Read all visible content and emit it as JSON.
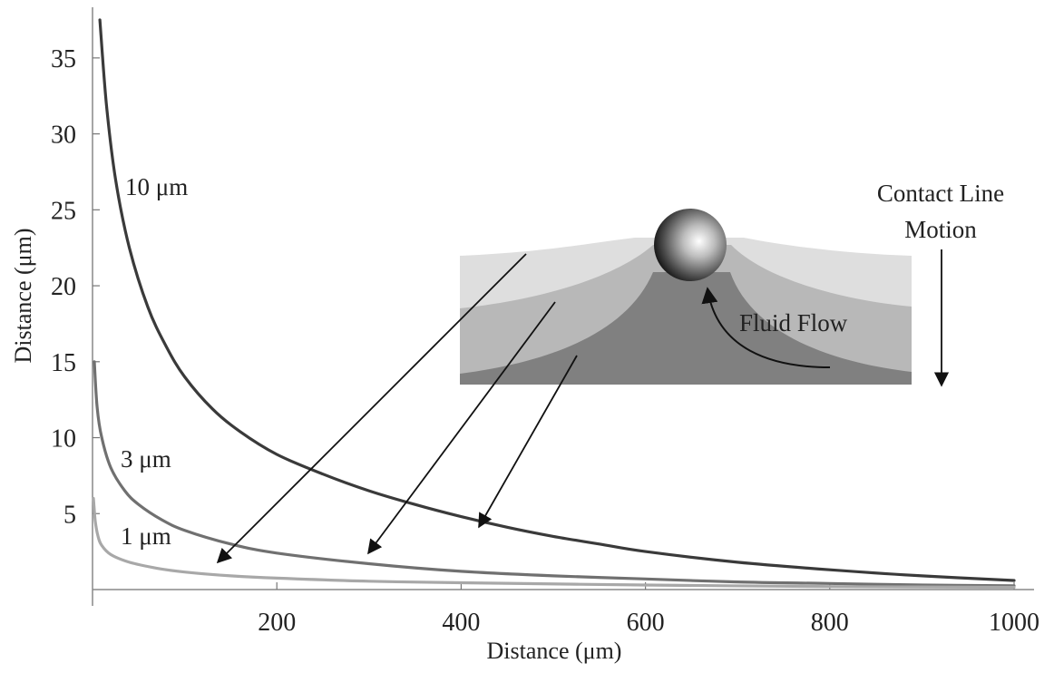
{
  "chart_data": {
    "type": "line",
    "title": "",
    "xlabel": "Distance (μm)",
    "ylabel": "Distance (μm)",
    "xlim": [
      0,
      1000
    ],
    "ylim": [
      0,
      37.5
    ],
    "x_ticks": [
      200,
      400,
      600,
      800,
      1000
    ],
    "y_ticks": [
      5,
      10,
      15,
      20,
      25,
      30,
      35
    ],
    "grid": false,
    "series": [
      {
        "name": "10 μm",
        "color": "#3a3a3a",
        "x": [
          8,
          15,
          25,
          40,
          60,
          80,
          100,
          130,
          160,
          200,
          250,
          300,
          350,
          400,
          450,
          500,
          550,
          600,
          700,
          800,
          900,
          1000
        ],
        "y": [
          37.5,
          32,
          27,
          22.5,
          18.6,
          16,
          14,
          11.9,
          10.4,
          8.9,
          7.6,
          6.5,
          5.6,
          4.8,
          4.1,
          3.5,
          3,
          2.5,
          1.8,
          1.3,
          0.9,
          0.6
        ]
      },
      {
        "name": "3 μm",
        "color": "#707070",
        "x": [
          2,
          5,
          10,
          20,
          35,
          50,
          75,
          100,
          150,
          200,
          300,
          400,
          500,
          600,
          700,
          800,
          900,
          1000
        ],
        "y": [
          15,
          12,
          10,
          8,
          6.5,
          5.6,
          4.6,
          3.9,
          3,
          2.4,
          1.7,
          1.2,
          0.9,
          0.7,
          0.5,
          0.4,
          0.3,
          0.25
        ]
      },
      {
        "name": "1 μm",
        "color": "#a8a8a8",
        "x": [
          1,
          3,
          6,
          10,
          20,
          40,
          70,
          100,
          150,
          200,
          300,
          400,
          600,
          800,
          1000
        ],
        "y": [
          6,
          4.5,
          3.5,
          2.9,
          2.3,
          1.8,
          1.4,
          1.15,
          0.9,
          0.75,
          0.55,
          0.45,
          0.3,
          0.2,
          0.15
        ]
      }
    ],
    "annotations": [
      {
        "text": "10 μm",
        "x": 35,
        "y": 26.5
      },
      {
        "text": "3 μm",
        "x": 30,
        "y": 8.4
      },
      {
        "text": "1 μm",
        "x": 30,
        "y": 3.2
      },
      {
        "text": "Fluid Flow"
      },
      {
        "text": "Contact Line"
      },
      {
        "text": "Motion"
      }
    ]
  }
}
